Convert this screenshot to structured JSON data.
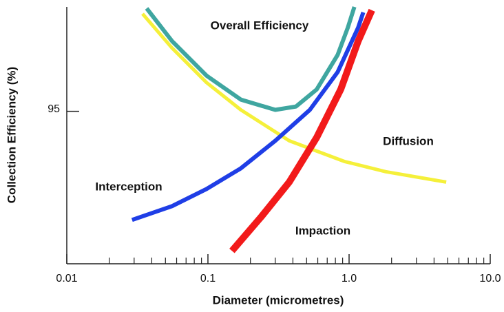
{
  "chart_data": {
    "type": "line",
    "x_label": "Diameter (micrometres)",
    "y_label": "Collection Efficiency (%)",
    "xscale": "log",
    "xlim": [
      0.01,
      10
    ],
    "xticks": [
      0.01,
      0.1,
      {
        "value": 1,
        "label": "1.0"
      },
      {
        "value": 10,
        "label": "10.0"
      }
    ],
    "xminorticks": [
      0.02,
      0.03,
      0.04,
      0.05,
      0.06,
      0.07,
      0.08,
      0.09,
      0.2,
      0.3,
      0.4,
      0.5,
      0.6,
      0.7,
      0.8,
      0.9,
      2,
      3,
      4,
      5,
      6,
      7,
      8,
      9
    ],
    "ylim": [
      87.7,
      100
    ],
    "yticks": [
      95
    ],
    "series": [
      {
        "name": "Overall Efficiency",
        "color": "#3fa6a0",
        "x": [
          0.0368,
          0.0557,
          0.0977,
          0.171,
          0.3,
          0.42,
          0.59,
          0.83,
          0.98,
          1.09
        ],
        "values": [
          99.93,
          98.36,
          96.71,
          95.56,
          95.07,
          95.23,
          96.05,
          97.7,
          99.01,
          100
        ]
      },
      {
        "name": "Diffusion",
        "color": "#f5f03a",
        "x": [
          0.0344,
          0.0557,
          0.0977,
          0.171,
          0.377,
          0.925,
          1.82,
          4.88
        ],
        "values": [
          99.67,
          98.03,
          96.38,
          95.07,
          93.59,
          92.6,
          92.11,
          91.61
        ]
      },
      {
        "name": "Interception",
        "color": "#1f3ee6",
        "x": [
          0.029,
          0.0557,
          0.0977,
          0.171,
          0.3,
          0.527,
          0.83,
          1.16,
          1.26
        ],
        "values": [
          89.8,
          90.46,
          91.28,
          92.27,
          93.59,
          95.07,
          96.88,
          99.01,
          99.74
        ]
      },
      {
        "name": "Impaction",
        "color": "#f21a1a",
        "x": [
          0.148,
          0.24,
          0.377,
          0.59,
          0.873,
          1.16,
          1.45
        ],
        "values": [
          88.32,
          89.97,
          91.61,
          93.75,
          96.05,
          98.36,
          99.84
        ]
      }
    ]
  }
}
